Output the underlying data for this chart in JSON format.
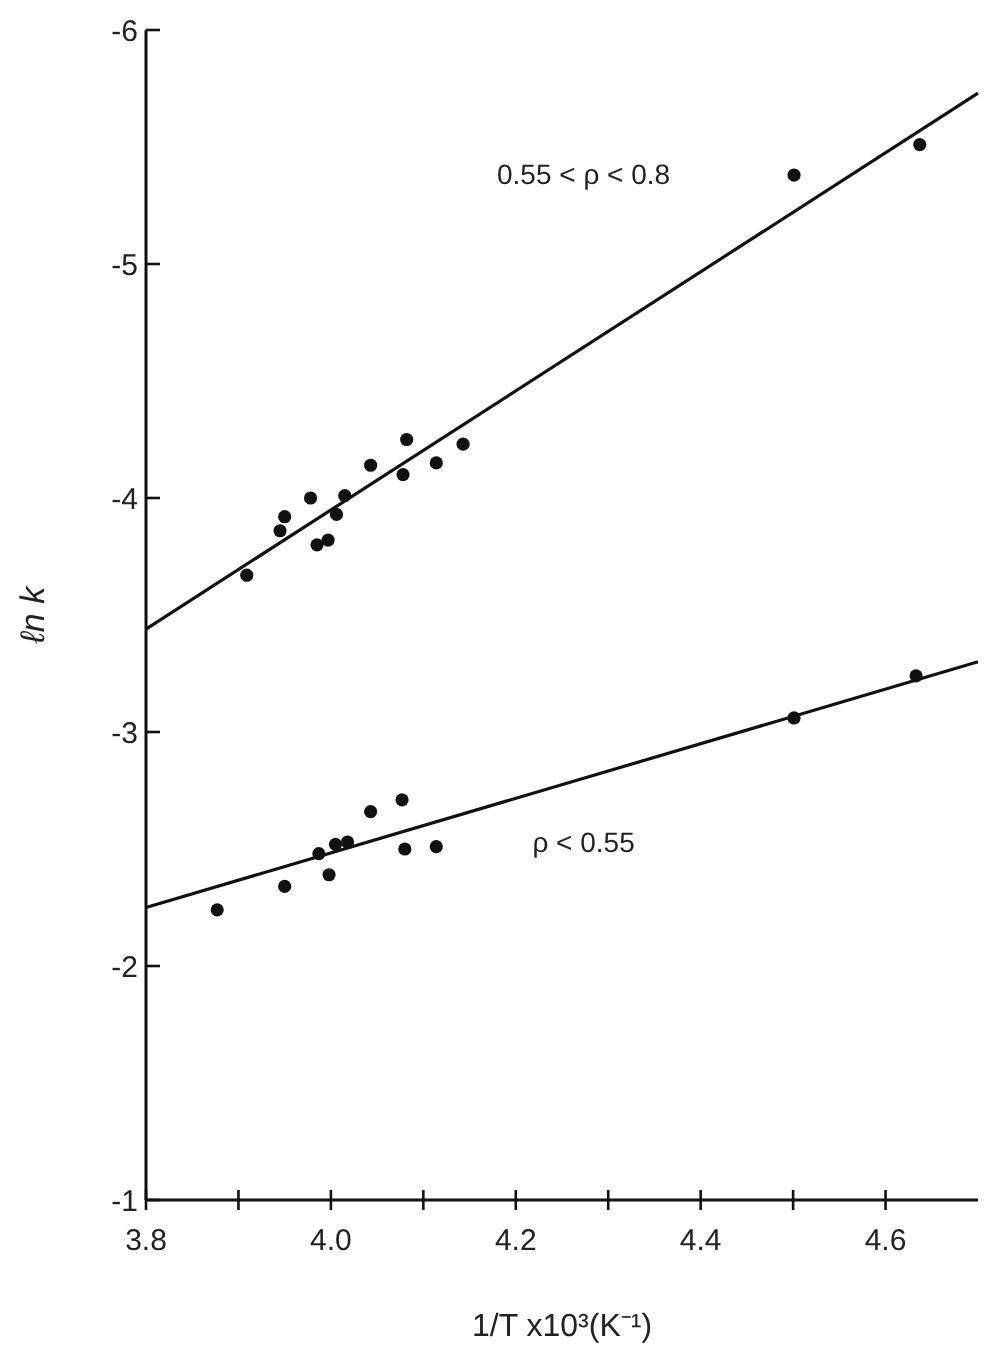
{
  "chart_data": {
    "type": "scatter",
    "xlabel": "1/T x10³(K⁻¹)",
    "ylabel": "ℓn k",
    "xlim": [
      3.8,
      4.7
    ],
    "ylim": [
      -1,
      -6
    ],
    "xticks": [
      {
        "value": 3.8,
        "label": "3.8"
      },
      {
        "value": 3.9,
        "label": null
      },
      {
        "value": 4.0,
        "label": "4.0"
      },
      {
        "value": 4.1,
        "label": null
      },
      {
        "value": 4.2,
        "label": "4.2"
      },
      {
        "value": 4.3,
        "label": null
      },
      {
        "value": 4.4,
        "label": "4.4"
      },
      {
        "value": 4.5,
        "label": null
      },
      {
        "value": 4.6,
        "label": "4.6"
      }
    ],
    "yticks": [
      -6,
      -5,
      -4,
      -3,
      -2,
      -1
    ],
    "marker": "circle",
    "series": [
      {
        "color": "#111111",
        "x": [
          3.909,
          3.945,
          3.95,
          3.978,
          3.985,
          3.997,
          4.006,
          4.015,
          4.043,
          4.078,
          4.082,
          4.114,
          4.143,
          4.501,
          4.637
        ],
        "values": [
          -3.67,
          -3.86,
          -3.92,
          -4.0,
          -3.8,
          -3.82,
          -3.93,
          -4.01,
          -4.14,
          -4.1,
          -4.25,
          -4.15,
          -4.23,
          -5.38,
          -5.51
        ]
      },
      {
        "type": "line",
        "marker": "none",
        "color": "#111111",
        "x": [
          3.8,
          4.7
        ],
        "values": [
          -3.44,
          -5.73
        ]
      },
      {
        "color": "#111111",
        "x": [
          3.877,
          3.95,
          3.987,
          3.998,
          4.005,
          4.018,
          4.043,
          4.077,
          4.08,
          4.114,
          4.501,
          4.633
        ],
        "values": [
          -2.24,
          -2.34,
          -2.48,
          -2.39,
          -2.52,
          -2.53,
          -2.66,
          -2.71,
          -2.5,
          -2.51,
          -3.06,
          -3.24
        ]
      },
      {
        "type": "line",
        "marker": "none",
        "color": "#111111",
        "x": [
          3.8,
          4.7
        ],
        "values": [
          -2.25,
          -3.3
        ]
      }
    ],
    "annotations": [
      "0.55 < ρ < 0.8",
      "ρ < 0.55"
    ]
  }
}
